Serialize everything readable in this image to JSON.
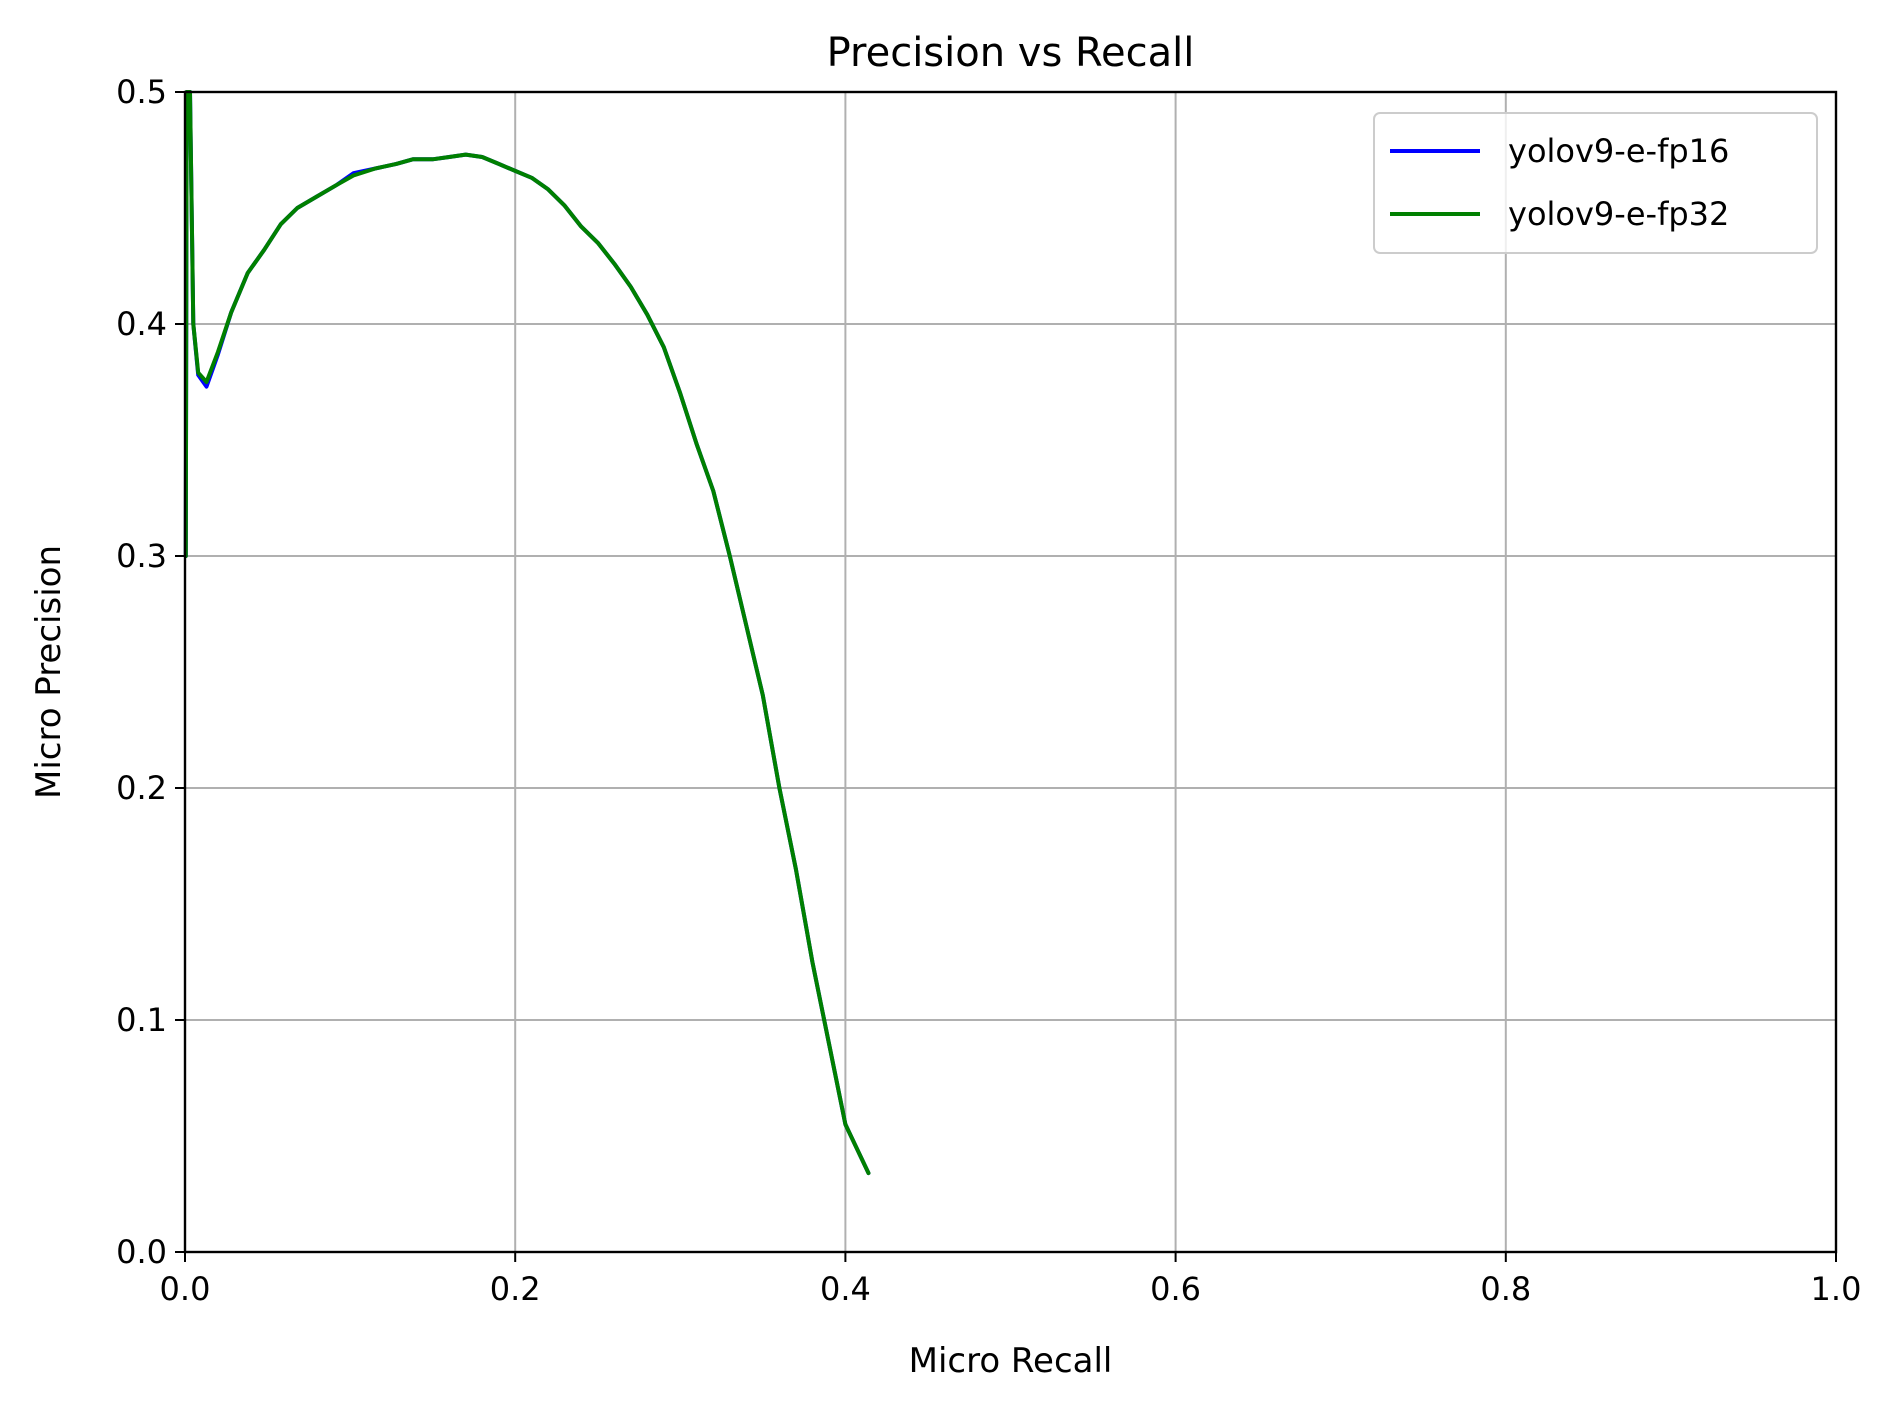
{
  "chart_data": {
    "type": "line",
    "title": "Precision vs Recall",
    "xlabel": "Micro Recall",
    "ylabel": "Micro Precision",
    "xlim": [
      0.0,
      1.0
    ],
    "ylim": [
      0.0,
      0.5
    ],
    "x_ticks": [
      "0.0",
      "0.2",
      "0.4",
      "0.6",
      "0.8",
      "1.0"
    ],
    "y_ticks": [
      "0.0",
      "0.1",
      "0.2",
      "0.3",
      "0.4",
      "0.5"
    ],
    "grid": true,
    "legend_position": "top-right",
    "series": [
      {
        "name": "yolov9-e-fp16",
        "color": "#0000ff",
        "points": [
          [
            0.0005,
            0.3
          ],
          [
            0.001,
            0.5
          ],
          [
            0.003,
            0.5
          ],
          [
            0.005,
            0.4
          ],
          [
            0.008,
            0.378
          ],
          [
            0.013,
            0.373
          ],
          [
            0.02,
            0.387
          ],
          [
            0.028,
            0.405
          ],
          [
            0.038,
            0.422
          ],
          [
            0.048,
            0.432
          ],
          [
            0.058,
            0.443
          ],
          [
            0.068,
            0.45
          ],
          [
            0.08,
            0.455
          ],
          [
            0.092,
            0.46
          ],
          [
            0.102,
            0.465
          ],
          [
            0.115,
            0.467
          ],
          [
            0.128,
            0.469
          ],
          [
            0.138,
            0.471
          ],
          [
            0.15,
            0.471
          ],
          [
            0.16,
            0.472
          ],
          [
            0.17,
            0.473
          ],
          [
            0.18,
            0.472
          ],
          [
            0.19,
            0.469
          ],
          [
            0.2,
            0.466
          ],
          [
            0.21,
            0.463
          ],
          [
            0.22,
            0.458
          ],
          [
            0.23,
            0.451
          ],
          [
            0.24,
            0.442
          ],
          [
            0.25,
            0.435
          ],
          [
            0.26,
            0.426
          ],
          [
            0.27,
            0.416
          ],
          [
            0.28,
            0.404
          ],
          [
            0.29,
            0.39
          ],
          [
            0.3,
            0.37
          ],
          [
            0.31,
            0.348
          ],
          [
            0.32,
            0.328
          ],
          [
            0.33,
            0.3
          ],
          [
            0.34,
            0.27
          ],
          [
            0.35,
            0.24
          ],
          [
            0.36,
            0.2
          ],
          [
            0.37,
            0.165
          ],
          [
            0.38,
            0.125
          ],
          [
            0.39,
            0.09
          ],
          [
            0.4,
            0.055
          ],
          [
            0.414,
            0.034
          ]
        ]
      },
      {
        "name": "yolov9-e-fp32",
        "color": "#008000",
        "points": [
          [
            0.0005,
            0.3
          ],
          [
            0.001,
            0.5
          ],
          [
            0.003,
            0.5
          ],
          [
            0.005,
            0.4
          ],
          [
            0.008,
            0.379
          ],
          [
            0.013,
            0.375
          ],
          [
            0.02,
            0.388
          ],
          [
            0.028,
            0.405
          ],
          [
            0.038,
            0.422
          ],
          [
            0.048,
            0.432
          ],
          [
            0.058,
            0.443
          ],
          [
            0.068,
            0.45
          ],
          [
            0.08,
            0.455
          ],
          [
            0.092,
            0.46
          ],
          [
            0.102,
            0.464
          ],
          [
            0.115,
            0.467
          ],
          [
            0.128,
            0.469
          ],
          [
            0.138,
            0.471
          ],
          [
            0.15,
            0.471
          ],
          [
            0.16,
            0.472
          ],
          [
            0.17,
            0.473
          ],
          [
            0.18,
            0.472
          ],
          [
            0.19,
            0.469
          ],
          [
            0.2,
            0.466
          ],
          [
            0.21,
            0.463
          ],
          [
            0.22,
            0.458
          ],
          [
            0.23,
            0.451
          ],
          [
            0.24,
            0.442
          ],
          [
            0.25,
            0.435
          ],
          [
            0.26,
            0.426
          ],
          [
            0.27,
            0.416
          ],
          [
            0.28,
            0.404
          ],
          [
            0.29,
            0.39
          ],
          [
            0.3,
            0.37
          ],
          [
            0.31,
            0.348
          ],
          [
            0.32,
            0.328
          ],
          [
            0.33,
            0.3
          ],
          [
            0.34,
            0.27
          ],
          [
            0.35,
            0.24
          ],
          [
            0.36,
            0.2
          ],
          [
            0.37,
            0.165
          ],
          [
            0.38,
            0.125
          ],
          [
            0.39,
            0.09
          ],
          [
            0.4,
            0.055
          ],
          [
            0.414,
            0.034
          ]
        ]
      }
    ]
  }
}
